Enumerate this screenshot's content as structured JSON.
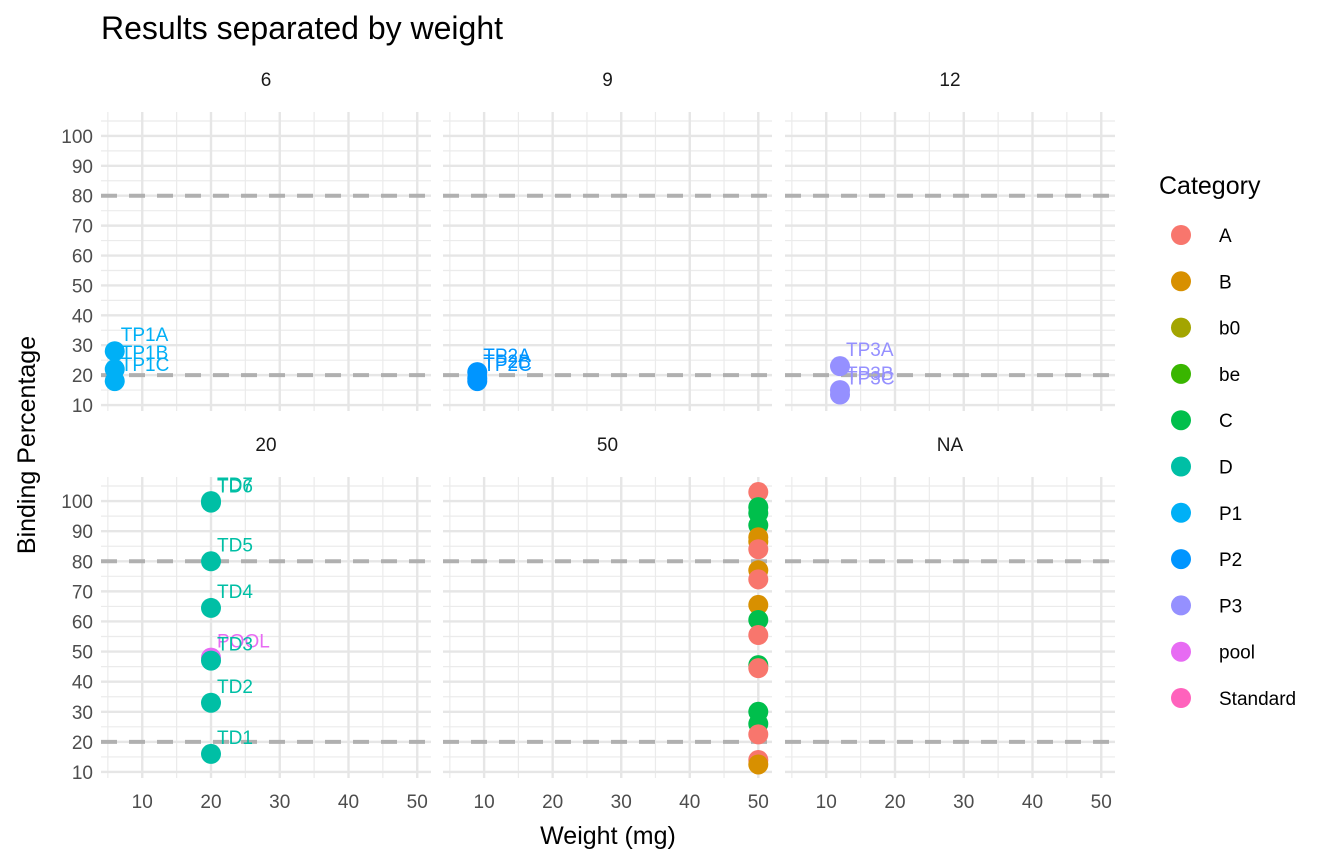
{
  "chart_data": {
    "type": "scatter",
    "title": "Results separated by weight",
    "xlabel": "Weight (mg)",
    "ylabel": "Binding Percentage",
    "xlim": [
      4,
      52
    ],
    "ylim": [
      8,
      108
    ],
    "x_ticks": [
      10,
      20,
      30,
      40,
      50
    ],
    "y_ticks": [
      10,
      20,
      30,
      40,
      50,
      60,
      70,
      80,
      90,
      100
    ],
    "hlines": [
      20,
      80
    ],
    "grid": true,
    "legend": {
      "title": "Category",
      "position": "right",
      "items": [
        {
          "label": "A",
          "color": "#F8766D"
        },
        {
          "label": "B",
          "color": "#D89000"
        },
        {
          "label": "b0",
          "color": "#A3A500"
        },
        {
          "label": "be",
          "color": "#39B600"
        },
        {
          "label": "C",
          "color": "#00BF4C"
        },
        {
          "label": "D",
          "color": "#00BFA5"
        },
        {
          "label": "P1",
          "color": "#00B0F6"
        },
        {
          "label": "P2",
          "color": "#0095FF"
        },
        {
          "label": "P3",
          "color": "#9590FF"
        },
        {
          "label": "pool",
          "color": "#E76BF3"
        },
        {
          "label": "Standard",
          "color": "#FF62BC"
        }
      ]
    },
    "panels": [
      {
        "label": "6",
        "points": [
          {
            "x": 6,
            "y": 28,
            "cat": "P1",
            "text": "TP1A"
          },
          {
            "x": 6,
            "y": 22,
            "cat": "P1",
            "text": "TP1B"
          },
          {
            "x": 6,
            "y": 18,
            "cat": "P1",
            "text": "TP1C"
          }
        ]
      },
      {
        "label": "9",
        "points": [
          {
            "x": 9,
            "y": 21,
            "cat": "P2",
            "text": "TP2A"
          },
          {
            "x": 9,
            "y": 19,
            "cat": "P2",
            "text": "TP2B"
          },
          {
            "x": 9,
            "y": 18,
            "cat": "P2",
            "text": "TP2C"
          }
        ]
      },
      {
        "label": "12",
        "points": [
          {
            "x": 12,
            "y": 23,
            "cat": "P3",
            "text": "TP3A"
          },
          {
            "x": 12,
            "y": 15,
            "cat": "P3",
            "text": "TP3B"
          },
          {
            "x": 12,
            "y": 13.5,
            "cat": "P3",
            "text": "TP3C"
          }
        ]
      },
      {
        "label": "20",
        "points": [
          {
            "x": 20,
            "y": 99.5,
            "cat": "D",
            "text": "TD6"
          },
          {
            "x": 20,
            "y": 100,
            "cat": "D",
            "text": "TD7"
          },
          {
            "x": 20,
            "y": 80,
            "cat": "D",
            "text": "TD5"
          },
          {
            "x": 20,
            "y": 64.5,
            "cat": "D",
            "text": "TD4"
          },
          {
            "x": 20,
            "y": 48,
            "cat": "pool",
            "text": "POOL"
          },
          {
            "x": 20,
            "y": 47,
            "cat": "D",
            "text": "TD3"
          },
          {
            "x": 20,
            "y": 33,
            "cat": "D",
            "text": "TD2"
          },
          {
            "x": 20,
            "y": 16,
            "cat": "D",
            "text": "TD1"
          }
        ]
      },
      {
        "label": "50",
        "points": [
          {
            "x": 50,
            "y": 103,
            "cat": "A"
          },
          {
            "x": 50,
            "y": 98,
            "cat": "C"
          },
          {
            "x": 50,
            "y": 96,
            "cat": "C"
          },
          {
            "x": 50,
            "y": 92,
            "cat": "C"
          },
          {
            "x": 50,
            "y": 88,
            "cat": "B"
          },
          {
            "x": 50,
            "y": 86.5,
            "cat": "B"
          },
          {
            "x": 50,
            "y": 84,
            "cat": "A"
          },
          {
            "x": 50,
            "y": 77,
            "cat": "B"
          },
          {
            "x": 50,
            "y": 74,
            "cat": "A"
          },
          {
            "x": 50,
            "y": 65.5,
            "cat": "B"
          },
          {
            "x": 50,
            "y": 60.5,
            "cat": "C"
          },
          {
            "x": 50,
            "y": 55.5,
            "cat": "A"
          },
          {
            "x": 50,
            "y": 45.5,
            "cat": "C"
          },
          {
            "x": 50,
            "y": 44.5,
            "cat": "A"
          },
          {
            "x": 50,
            "y": 30,
            "cat": "C"
          },
          {
            "x": 50,
            "y": 26,
            "cat": "C"
          },
          {
            "x": 50,
            "y": 22.5,
            "cat": "A"
          },
          {
            "x": 50,
            "y": 14,
            "cat": "A"
          },
          {
            "x": 50,
            "y": 12.5,
            "cat": "B"
          }
        ]
      },
      {
        "label": "NA",
        "points": []
      }
    ]
  }
}
